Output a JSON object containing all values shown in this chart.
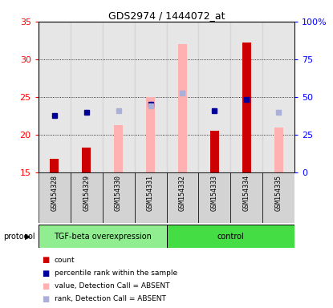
{
  "title": "GDS2974 / 1444072_at",
  "samples": [
    "GSM154328",
    "GSM154329",
    "GSM154330",
    "GSM154331",
    "GSM154332",
    "GSM154333",
    "GSM154334",
    "GSM154335"
  ],
  "red_bars": [
    16.8,
    18.3,
    null,
    null,
    null,
    20.5,
    32.2,
    null
  ],
  "pink_bars": [
    null,
    null,
    21.3,
    25.0,
    32.0,
    null,
    null,
    21.0
  ],
  "blue_squares": [
    22.5,
    23.0,
    null,
    24.0,
    null,
    23.2,
    24.7,
    null
  ],
  "lightblue_squares": [
    null,
    null,
    23.2,
    23.8,
    25.5,
    null,
    null,
    23.0
  ],
  "ylim_left": [
    15,
    35
  ],
  "ylim_right": [
    0,
    100
  ],
  "yticks_left": [
    15,
    20,
    25,
    30,
    35
  ],
  "ytick_labels_right": [
    "0",
    "25",
    "50",
    "75",
    "100%"
  ],
  "sample_bg_color": "#d3d3d3",
  "red_color": "#cc0000",
  "pink_color": "#ffb0b0",
  "blue_color": "#000099",
  "lightblue_color": "#aab0d8",
  "group1_color": "#90ee90",
  "group2_color": "#44dd44",
  "group1_label": "TGF-beta overexpression",
  "group2_label": "control",
  "protocol_label": "protocol",
  "legend_items": [
    "count",
    "percentile rank within the sample",
    "value, Detection Call = ABSENT",
    "rank, Detection Call = ABSENT"
  ],
  "grid_lines": [
    20,
    25,
    30
  ]
}
